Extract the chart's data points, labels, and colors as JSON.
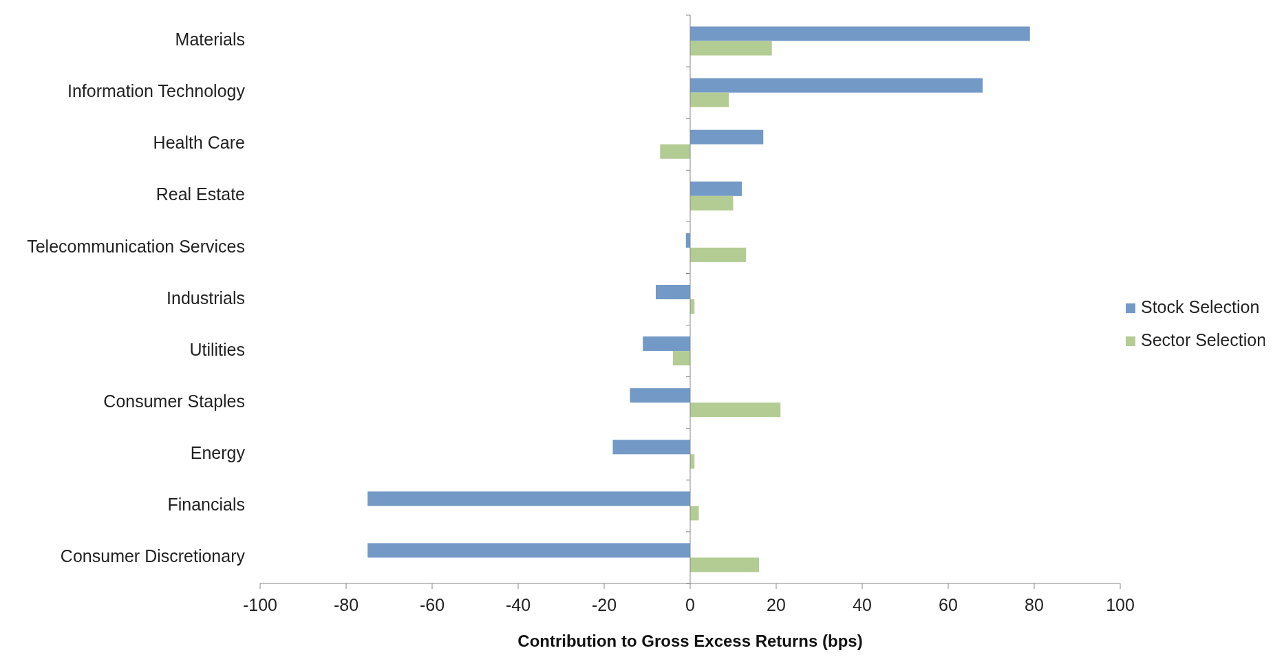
{
  "chart_data": {
    "type": "bar",
    "orientation": "horizontal",
    "xlabel": "Contribution to Gross Excess Returns (bps)",
    "categories": [
      "Materials",
      "Information Technology",
      "Health Care",
      "Real Estate",
      "Telecommunication Services",
      "Industrials",
      "Utilities",
      "Consumer Staples",
      "Energy",
      "Financials",
      "Consumer Discretionary"
    ],
    "series": [
      {
        "name": "Stock Selection",
        "color": "#7399c6",
        "values": [
          79,
          68,
          17,
          12,
          -1,
          -8,
          -11,
          -14,
          -18,
          -75,
          -75
        ]
      },
      {
        "name": "Sector Selection",
        "color": "#b3cc93",
        "values": [
          19,
          9,
          -7,
          10,
          13,
          1,
          -4,
          21,
          1,
          2,
          16
        ]
      }
    ],
    "xlim": [
      -100,
      100
    ],
    "xticks": [
      -100,
      -80,
      -60,
      -40,
      -20,
      0,
      20,
      40,
      60,
      80,
      100
    ],
    "legend": "right"
  }
}
